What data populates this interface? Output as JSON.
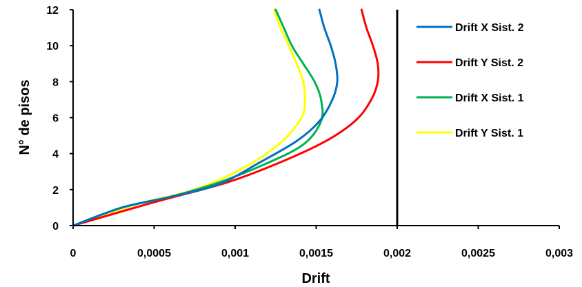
{
  "chart_data": {
    "type": "line",
    "title": "",
    "xlabel": "Drift",
    "ylabel": "N° de pisos",
    "xlim": [
      0,
      0.003
    ],
    "ylim": [
      0,
      12
    ],
    "x_ticks": [
      {
        "value": 0,
        "label": "0"
      },
      {
        "value": 0.0005,
        "label": "0,0005"
      },
      {
        "value": 0.001,
        "label": "0,001"
      },
      {
        "value": 0.0015,
        "label": "0,0015"
      },
      {
        "value": 0.002,
        "label": "0,002"
      },
      {
        "value": 0.0025,
        "label": "0,0025"
      },
      {
        "value": 0.003,
        "label": "0,003"
      }
    ],
    "y_ticks": [
      {
        "value": 0,
        "label": "0"
      },
      {
        "value": 2,
        "label": "2"
      },
      {
        "value": 4,
        "label": "4"
      },
      {
        "value": 6,
        "label": "6"
      },
      {
        "value": 8,
        "label": "8"
      },
      {
        "value": 10,
        "label": "10"
      },
      {
        "value": 12,
        "label": "12"
      }
    ],
    "grid": false,
    "legend_position": "top-right",
    "limit_line": {
      "x": 0.002,
      "color": "#000000"
    },
    "series": [
      {
        "name": "Drift X Sist. 2",
        "color": "#0070C0",
        "points": [
          [
            0,
            0
          ],
          [
            0.0003,
            1
          ],
          [
            0.0006,
            1.6
          ],
          [
            0.0009,
            2.3
          ],
          [
            0.00115,
            3.5
          ],
          [
            0.00138,
            4.7
          ],
          [
            0.00152,
            5.8
          ],
          [
            0.0016,
            7
          ],
          [
            0.00163,
            8
          ],
          [
            0.00162,
            9
          ],
          [
            0.00159,
            10
          ],
          [
            0.00155,
            11
          ],
          [
            0.00152,
            12
          ]
        ]
      },
      {
        "name": "Drift Y Sist. 2",
        "color": "#FF0000",
        "points": [
          [
            0,
            0
          ],
          [
            0.0005,
            1.3
          ],
          [
            0.00095,
            2.4
          ],
          [
            0.0013,
            3.6
          ],
          [
            0.00158,
            4.8
          ],
          [
            0.00175,
            5.9
          ],
          [
            0.00184,
            7
          ],
          [
            0.00188,
            8
          ],
          [
            0.00188,
            9
          ],
          [
            0.00185,
            10
          ],
          [
            0.00181,
            11
          ],
          [
            0.00178,
            12
          ]
        ]
      },
      {
        "name": "Drift X Sist. 1",
        "color": "#00B050",
        "points": [
          [
            0,
            0
          ],
          [
            0.0003,
            1
          ],
          [
            0.0006,
            1.6
          ],
          [
            0.0009,
            2.4
          ],
          [
            0.00118,
            3.4
          ],
          [
            0.00142,
            4.5
          ],
          [
            0.00153,
            5.8
          ],
          [
            0.00153,
            7
          ],
          [
            0.00149,
            8
          ],
          [
            0.00142,
            9
          ],
          [
            0.00135,
            10
          ],
          [
            0.0013,
            11
          ],
          [
            0.00125,
            12
          ]
        ]
      },
      {
        "name": "Drift Y Sist. 1",
        "color": "#FFFF00",
        "points": [
          [
            0,
            0
          ],
          [
            0.0004,
            1.2
          ],
          [
            0.00075,
            2
          ],
          [
            0.00105,
            3.2
          ],
          [
            0.00128,
            4.6
          ],
          [
            0.00141,
            6
          ],
          [
            0.00143,
            7
          ],
          [
            0.00142,
            8
          ],
          [
            0.00138,
            9
          ],
          [
            0.00133,
            10
          ],
          [
            0.00128,
            11
          ],
          [
            0.00124,
            12
          ]
        ]
      }
    ]
  }
}
